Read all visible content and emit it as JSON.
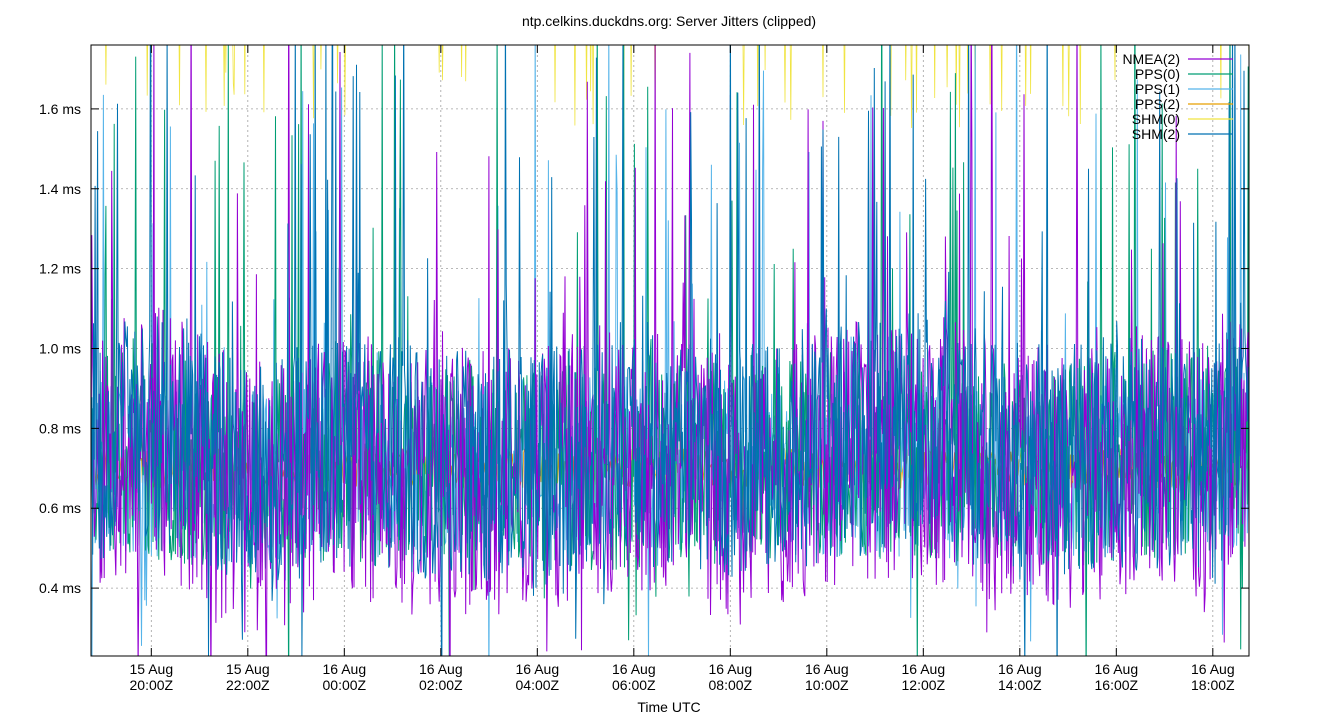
{
  "chart_data": {
    "type": "line",
    "title": "ntp.celkins.duckdns.org: Server Jitters (clipped)",
    "xlabel": "Time UTC",
    "ylabel": "",
    "xlim": [
      "2023-08-15T18:45Z",
      "2023-08-16T18:45Z"
    ],
    "ylim": [
      0.23,
      1.76
    ],
    "y_unit": "ms",
    "grid": true,
    "legend_position": "top-right",
    "x_ticks": [
      {
        "t": "2023-08-15T20:00Z",
        "line1": "15 Aug",
        "line2": "20:00Z"
      },
      {
        "t": "2023-08-15T22:00Z",
        "line1": "15 Aug",
        "line2": "22:00Z"
      },
      {
        "t": "2023-08-16T00:00Z",
        "line1": "16 Aug",
        "line2": "00:00Z"
      },
      {
        "t": "2023-08-16T02:00Z",
        "line1": "16 Aug",
        "line2": "02:00Z"
      },
      {
        "t": "2023-08-16T04:00Z",
        "line1": "16 Aug",
        "line2": "04:00Z"
      },
      {
        "t": "2023-08-16T06:00Z",
        "line1": "16 Aug",
        "line2": "06:00Z"
      },
      {
        "t": "2023-08-16T08:00Z",
        "line1": "16 Aug",
        "line2": "08:00Z"
      },
      {
        "t": "2023-08-16T10:00Z",
        "line1": "16 Aug",
        "line2": "10:00Z"
      },
      {
        "t": "2023-08-16T12:00Z",
        "line1": "16 Aug",
        "line2": "12:00Z"
      },
      {
        "t": "2023-08-16T14:00Z",
        "line1": "16 Aug",
        "line2": "14:00Z"
      },
      {
        "t": "2023-08-16T16:00Z",
        "line1": "16 Aug",
        "line2": "16:00Z"
      },
      {
        "t": "2023-08-16T18:00Z",
        "line1": "16 Aug",
        "line2": "18:00Z"
      }
    ],
    "y_ticks": [
      {
        "value": 0.4,
        "label": "0.4 ms"
      },
      {
        "value": 0.6,
        "label": "0.6 ms"
      },
      {
        "value": 0.8,
        "label": "0.8 ms"
      },
      {
        "value": 1.0,
        "label": "1.0 ms"
      },
      {
        "value": 1.2,
        "label": "1.2 ms"
      },
      {
        "value": 1.4,
        "label": "1.4 ms"
      },
      {
        "value": 1.6,
        "label": "1.6 ms"
      }
    ],
    "series": [
      {
        "name": "NMEA(2)",
        "color": "#9400d3",
        "seed": 11,
        "base": 0.68,
        "spread": 0.34,
        "x": [
          "2023-08-15T18:45Z",
          "2023-08-15T20:00Z",
          "2023-08-15T22:00Z",
          "2023-08-16T00:00Z",
          "2023-08-16T02:00Z",
          "2023-08-16T04:00Z",
          "2023-08-16T06:00Z",
          "2023-08-16T08:00Z",
          "2023-08-16T10:00Z",
          "2023-08-16T12:00Z",
          "2023-08-16T14:00Z",
          "2023-08-16T16:00Z",
          "2023-08-16T18:00Z",
          "2023-08-16T18:45Z"
        ],
        "y": [
          0.72,
          0.78,
          0.62,
          0.7,
          0.66,
          0.68,
          0.74,
          0.64,
          0.72,
          0.76,
          0.66,
          0.7,
          0.68,
          0.8
        ]
      },
      {
        "name": "PPS(0)",
        "color": "#009e73",
        "seed": 23,
        "base": 0.72,
        "spread": 0.26,
        "x": [
          "2023-08-15T18:45Z",
          "2023-08-15T22:00Z",
          "2023-08-16T02:00Z",
          "2023-08-16T06:00Z",
          "2023-08-16T10:00Z",
          "2023-08-16T14:00Z",
          "2023-08-16T18:45Z"
        ],
        "y": [
          0.74,
          0.7,
          0.72,
          0.7,
          0.74,
          0.7,
          0.76
        ]
      },
      {
        "name": "PPS(1)",
        "color": "#56b4e9",
        "seed": 37,
        "base": 0.7,
        "spread": 0.22,
        "x": [
          "2023-08-15T18:45Z",
          "2023-08-15T22:00Z",
          "2023-08-16T02:00Z",
          "2023-08-16T06:00Z",
          "2023-08-16T10:00Z",
          "2023-08-16T14:00Z",
          "2023-08-16T18:45Z"
        ],
        "y": [
          0.7,
          0.68,
          0.7,
          0.72,
          0.7,
          0.68,
          0.72
        ]
      },
      {
        "name": "PPS(2)",
        "color": "#e69f00",
        "seed": 41,
        "base": 0.7,
        "spread": 0.1,
        "x": [
          "2023-08-15T18:45Z",
          "2023-08-16T06:00Z",
          "2023-08-16T18:45Z"
        ],
        "y": [
          0.7,
          0.7,
          0.7
        ]
      },
      {
        "name": "SHM(0)",
        "color": "#f0e442",
        "seed": 53,
        "base": 1.85,
        "spread": 0.12,
        "x": [
          "2023-08-15T18:45Z",
          "2023-08-16T06:00Z",
          "2023-08-16T18:45Z"
        ],
        "y": [
          1.9,
          1.88,
          1.9
        ]
      },
      {
        "name": "SHM(2)",
        "color": "#0072b2",
        "seed": 67,
        "base": 0.74,
        "spread": 0.3,
        "x": [
          "2023-08-15T18:45Z",
          "2023-08-15T20:00Z",
          "2023-08-15T22:00Z",
          "2023-08-16T00:00Z",
          "2023-08-16T02:00Z",
          "2023-08-16T04:00Z",
          "2023-08-16T06:00Z",
          "2023-08-16T08:00Z",
          "2023-08-16T10:00Z",
          "2023-08-16T12:00Z",
          "2023-08-16T14:00Z",
          "2023-08-16T16:00Z",
          "2023-08-16T18:00Z",
          "2023-08-16T18:45Z"
        ],
        "y": [
          0.76,
          0.82,
          0.7,
          0.74,
          0.72,
          0.7,
          0.78,
          0.72,
          0.76,
          0.8,
          0.72,
          0.74,
          0.7,
          0.86
        ]
      }
    ]
  }
}
